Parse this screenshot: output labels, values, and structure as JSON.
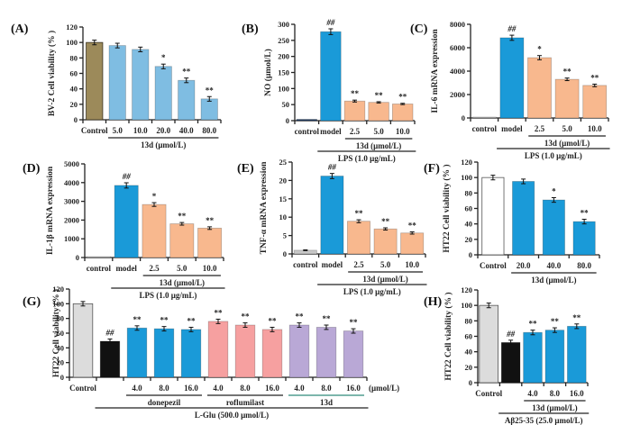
{
  "chart_data": [
    {
      "id": "A",
      "panel_label": "(A)",
      "type": "bar",
      "ylabel": "BV-2 Cell viability (% )",
      "ylim": [
        0,
        120
      ],
      "yticks": [
        0,
        20,
        40,
        60,
        80,
        100,
        120
      ],
      "categories": [
        "Control",
        "5.0",
        "10.0",
        "20.0",
        "40.0",
        "80.0"
      ],
      "values": [
        100,
        96,
        91,
        69,
        51,
        27
      ],
      "errors": [
        3,
        3,
        3,
        3,
        3,
        3
      ],
      "significance": [
        "",
        "",
        "",
        "*",
        "**",
        "**"
      ],
      "bar_colors": [
        "#9c8a5a",
        "#7fbde2",
        "#7fbde2",
        "#7fbde2",
        "#7fbde2",
        "#7fbde2"
      ],
      "groups": [
        {
          "label": "13d (μmol/L)",
          "from": 1,
          "to": 5,
          "level": 1
        }
      ]
    },
    {
      "id": "B",
      "panel_label": "(B)",
      "type": "bar",
      "ylabel": "NO (μmol/L)",
      "ylim": [
        0,
        300
      ],
      "yticks": [
        0,
        50,
        100,
        150,
        200,
        250,
        300
      ],
      "categories": [
        "control",
        "model",
        "2.5",
        "5.0",
        "10.0"
      ],
      "values": [
        4,
        277,
        61,
        57,
        52
      ],
      "errors": [
        1,
        9,
        3,
        2,
        2
      ],
      "significance": [
        "",
        "##",
        "**",
        "**",
        "**"
      ],
      "bar_colors": [
        "#1f3b63",
        "#1a9ad8",
        "#f8b88e",
        "#f8b88e",
        "#f8b88e"
      ],
      "groups": [
        {
          "label": "13d (μmol/L)",
          "from": 2,
          "to": 4,
          "level": 1
        },
        {
          "label": "LPS (1.0 μg/mL)",
          "from": 1,
          "to": 4,
          "level": 2
        }
      ]
    },
    {
      "id": "C",
      "panel_label": "(C)",
      "type": "bar",
      "ylabel": "IL-6 mRNA expression",
      "ylim": [
        0,
        8000
      ],
      "yticks": [
        0,
        2000,
        4000,
        6000,
        8000
      ],
      "categories": [
        "control",
        "model",
        "2.5",
        "5.0",
        "10.0"
      ],
      "values": [
        10,
        6850,
        5150,
        3300,
        2780
      ],
      "errors": [
        5,
        220,
        180,
        110,
        110
      ],
      "significance": [
        "",
        "##",
        "*",
        "**",
        "**"
      ],
      "bar_colors": [
        "#bbbbbb",
        "#1a9ad8",
        "#f8b88e",
        "#f8b88e",
        "#f8b88e"
      ],
      "groups": [
        {
          "label": "13d (μmol/L)",
          "from": 2,
          "to": 4,
          "level": 1
        },
        {
          "label": "LPS (1.0 μg/mL)",
          "from": 1,
          "to": 4,
          "level": 2
        }
      ]
    },
    {
      "id": "D",
      "panel_label": "(D)",
      "type": "bar",
      "ylabel": "IL-1β mRNA expression",
      "ylim": [
        0,
        5000
      ],
      "yticks": [
        0,
        1000,
        2000,
        3000,
        4000,
        5000
      ],
      "categories": [
        "control",
        "model",
        "2.5",
        "5.0",
        "10.0"
      ],
      "values": [
        10,
        3850,
        2830,
        1800,
        1570
      ],
      "errors": [
        5,
        140,
        100,
        70,
        70
      ],
      "significance": [
        "",
        "##",
        "*",
        "**",
        "**"
      ],
      "bar_colors": [
        "#bbbbbb",
        "#1a9ad8",
        "#f8b88e",
        "#f8b88e",
        "#f8b88e"
      ],
      "groups": [
        {
          "label": "13d (μmol/L)",
          "from": 2,
          "to": 4,
          "level": 1
        },
        {
          "label": "LPS (1.0 μg/mL)",
          "from": 1,
          "to": 4,
          "level": 2
        }
      ]
    },
    {
      "id": "E",
      "panel_label": "(E)",
      "type": "bar",
      "ylabel": "TNF-α mRNA expression",
      "ylim": [
        0,
        25
      ],
      "yticks": [
        0,
        5,
        10,
        15,
        20,
        25
      ],
      "categories": [
        "control",
        "model",
        "2.5",
        "5.0",
        "10.0"
      ],
      "values": [
        1,
        21.2,
        8.9,
        6.8,
        5.7
      ],
      "errors": [
        0.1,
        0.7,
        0.4,
        0.3,
        0.3
      ],
      "significance": [
        "",
        "##",
        "**",
        "**",
        "**"
      ],
      "bar_colors": [
        "#c8c8c8",
        "#1a9ad8",
        "#f8b88e",
        "#f8b88e",
        "#f8b88e"
      ],
      "groups": [
        {
          "label": "13d (μmol/L)",
          "from": 2,
          "to": 4,
          "level": 1
        },
        {
          "label": "LPS (1.0 μg/mL)",
          "from": 1,
          "to": 4,
          "level": 2
        }
      ]
    },
    {
      "id": "F",
      "panel_label": "(F)",
      "type": "bar",
      "ylabel": "HT22 Cell viability (% )",
      "ylim": [
        0,
        120
      ],
      "yticks": [
        0,
        20,
        40,
        60,
        80,
        100,
        120
      ],
      "categories": [
        "Control",
        "20.0",
        "40.0",
        "80.0"
      ],
      "values": [
        100,
        95,
        71,
        43
      ],
      "errors": [
        3,
        3,
        3,
        3
      ],
      "significance": [
        "",
        "",
        "*",
        "**"
      ],
      "bar_colors": [
        "#ffffff",
        "#1a9ad8",
        "#1a9ad8",
        "#1a9ad8"
      ],
      "groups": [
        {
          "label": "13d (μmol/L)",
          "from": 1,
          "to": 3,
          "level": 1
        }
      ]
    },
    {
      "id": "G",
      "panel_label": "(G)",
      "type": "bar",
      "ylabel": "HT22 Cell viability (% )",
      "ylim": [
        0,
        120
      ],
      "yticks": [
        0,
        20,
        40,
        60,
        80,
        100,
        120
      ],
      "categories": [
        "Control",
        "",
        "4.0",
        "8.0",
        "16.0",
        "4.0",
        "8.0",
        "16.0",
        "4.0",
        "8.0",
        "16.0"
      ],
      "values": [
        100,
        49,
        67,
        66,
        65,
        76,
        71,
        65,
        71,
        68,
        63
      ],
      "errors": [
        3,
        3,
        3,
        3,
        3,
        3,
        3,
        3,
        3,
        3,
        3
      ],
      "significance": [
        "",
        "##",
        "**",
        "**",
        "**",
        "**",
        "**",
        "**",
        "**",
        "**",
        "**"
      ],
      "bar_colors": [
        "#dcdcdc",
        "#111111",
        "#1a9ad8",
        "#1a9ad8",
        "#1a9ad8",
        "#f6a0a0",
        "#f6a0a0",
        "#f6a0a0",
        "#b9a8d6",
        "#b9a8d6",
        "#b9a8d6"
      ],
      "unit_label": "(μmol/L)",
      "groups": [
        {
          "label": "donepezil",
          "from": 2,
          "to": 4,
          "level": 1
        },
        {
          "label": "roflumilast",
          "from": 5,
          "to": 7,
          "level": 1
        },
        {
          "label": "13d",
          "from": 8,
          "to": 10,
          "level": 1,
          "line_color": "#2f8a7a"
        },
        {
          "label": "L-Glu (500.0 μmol/L)",
          "from": 1,
          "to": 10,
          "level": 2
        }
      ]
    },
    {
      "id": "H",
      "panel_label": "(H)",
      "type": "bar",
      "ylabel": "HT22 Cell viability (% )",
      "ylim": [
        0,
        120
      ],
      "yticks": [
        0,
        20,
        40,
        60,
        80,
        100,
        120
      ],
      "categories": [
        "Control",
        "",
        "4.0",
        "8.0",
        "16.0"
      ],
      "values": [
        100,
        52,
        65,
        68,
        73
      ],
      "errors": [
        3,
        3,
        3,
        3,
        3
      ],
      "significance": [
        "",
        "##",
        "**",
        "**",
        "**"
      ],
      "bar_colors": [
        "#dcdcdc",
        "#111111",
        "#1a9ad8",
        "#1a9ad8",
        "#1a9ad8"
      ],
      "groups": [
        {
          "label": "13d (μmol/L)",
          "from": 2,
          "to": 4,
          "level": 1
        },
        {
          "label": "Aβ25-35 (25.0 μmol/L)",
          "from": 1,
          "to": 4,
          "level": 2
        }
      ]
    }
  ]
}
